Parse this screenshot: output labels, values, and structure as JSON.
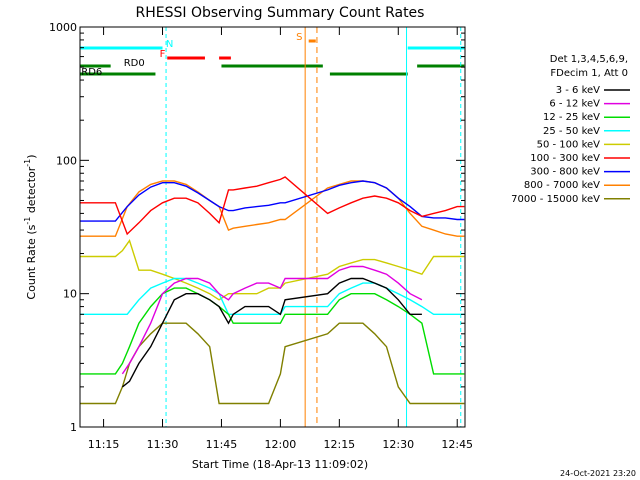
{
  "chart_data": {
    "type": "line",
    "title": "RHESSI Observing Summary Count Rates",
    "xlabel": "Start Time (18-Apr-13 11:09:02)",
    "ylabel": "Count Rate (s",
    "ylabel_sup": "-1",
    "ylabel_tail": " detector",
    "ylabel_sup2": "-1",
    "ylabel_end": ")",
    "timestamp": "24-Oct-2021 23:20",
    "yscale": "log",
    "ylim": [
      1,
      1000
    ],
    "xlim": [
      11.15,
      12.783
    ],
    "x_ticks": [
      {
        "v": 11.25,
        "label": "11:15"
      },
      {
        "v": 11.5,
        "label": "11:30"
      },
      {
        "v": 11.75,
        "label": "11:45"
      },
      {
        "v": 12.0,
        "label": "12:00"
      },
      {
        "v": 12.25,
        "label": "12:15"
      },
      {
        "v": 12.5,
        "label": "12:30"
      },
      {
        "v": 12.75,
        "label": "12:45"
      }
    ],
    "y_ticks": [
      {
        "v": 1,
        "label": "1"
      },
      {
        "v": 10,
        "label": "10"
      },
      {
        "v": 100,
        "label": "100"
      },
      {
        "v": 1000,
        "label": "1000"
      }
    ],
    "legend_header": [
      "Det 1,3,4,5,6,9,",
      "FDecim 1, Att 0"
    ],
    "series": [
      {
        "name": "3 - 6 keV",
        "color": "#000000",
        "x": [
          11.33,
          11.36,
          11.4,
          11.45,
          11.5,
          11.55,
          11.6,
          11.65,
          11.7,
          11.74,
          11.78,
          11.8,
          11.85,
          11.9,
          11.95,
          12.0,
          12.02,
          12.2,
          12.25,
          12.3,
          12.35,
          12.4,
          12.45,
          12.5,
          12.55,
          12.6
        ],
        "y": [
          2,
          2.2,
          3,
          4,
          6,
          9,
          10,
          10,
          9,
          8,
          6,
          7,
          8,
          8,
          8,
          7,
          9,
          10,
          12,
          13,
          13,
          12,
          11,
          9,
          7,
          7
        ]
      },
      {
        "name": "6 - 12 keV",
        "color": "#e000e0",
        "x": [
          11.33,
          11.36,
          11.4,
          11.45,
          11.5,
          11.55,
          11.6,
          11.65,
          11.7,
          11.74,
          11.78,
          11.8,
          11.85,
          11.9,
          11.95,
          12.0,
          12.02,
          12.2,
          12.25,
          12.3,
          12.35,
          12.4,
          12.45,
          12.5,
          12.55,
          12.6
        ],
        "y": [
          2.5,
          3,
          4,
          6,
          10,
          12,
          13,
          13,
          12,
          10,
          9,
          10,
          11,
          12,
          12,
          11,
          13,
          13,
          15,
          16,
          16,
          15,
          14,
          12,
          10,
          9
        ]
      },
      {
        "name": "12 - 25 keV",
        "color": "#00dd00",
        "x": [
          11.15,
          11.2,
          11.25,
          11.3,
          11.33,
          11.36,
          11.4,
          11.45,
          11.5,
          11.55,
          11.6,
          11.65,
          11.7,
          11.74,
          11.78,
          11.8,
          11.85,
          11.9,
          11.95,
          12.0,
          12.02,
          12.2,
          12.25,
          12.3,
          12.35,
          12.4,
          12.45,
          12.5,
          12.55,
          12.6,
          12.65,
          12.7,
          12.75,
          12.78
        ],
        "y": [
          2.5,
          2.5,
          2.5,
          2.5,
          3,
          4,
          6,
          8,
          10,
          11,
          11,
          10,
          9,
          8,
          7,
          6,
          6,
          6,
          6,
          6,
          7,
          7,
          9,
          10,
          10,
          10,
          9,
          8,
          7,
          6,
          2.5,
          2.5,
          2.5,
          2.5
        ]
      },
      {
        "name": "25 - 50 keV",
        "color": "#00ffff",
        "x": [
          11.15,
          11.2,
          11.25,
          11.3,
          11.35,
          11.4,
          11.45,
          11.5,
          11.55,
          11.6,
          11.65,
          11.7,
          11.74,
          11.78,
          11.8,
          11.85,
          11.9,
          11.95,
          12.0,
          12.02,
          12.2,
          12.25,
          12.3,
          12.35,
          12.4,
          12.45,
          12.5,
          12.55,
          12.6,
          12.65,
          12.7,
          12.75,
          12.78
        ],
        "y": [
          7,
          7,
          7,
          7,
          7,
          9,
          11,
          12,
          13,
          13,
          12,
          11,
          10,
          7,
          7,
          7,
          7,
          7,
          7,
          8,
          8,
          10,
          11,
          12,
          12,
          11,
          10,
          9,
          8,
          7,
          7,
          7,
          7
        ]
      },
      {
        "name": "50 - 100 keV",
        "color": "#cccc00",
        "x": [
          11.15,
          11.2,
          11.25,
          11.3,
          11.33,
          11.36,
          11.4,
          11.45,
          11.5,
          11.55,
          11.6,
          11.65,
          11.7,
          11.74,
          11.78,
          11.8,
          11.85,
          11.9,
          11.95,
          12.0,
          12.02,
          12.2,
          12.25,
          12.3,
          12.35,
          12.4,
          12.45,
          12.5,
          12.55,
          12.6,
          12.65,
          12.7,
          12.75,
          12.78
        ],
        "y": [
          19,
          19,
          19,
          19,
          21,
          25,
          15,
          15,
          14,
          13,
          12,
          11,
          10,
          9,
          10,
          10,
          10,
          10,
          11,
          11,
          12,
          14,
          16,
          17,
          18,
          18,
          17,
          16,
          15,
          14,
          19,
          19,
          19,
          19
        ]
      },
      {
        "name": "100 - 300 keV",
        "color": "#ff0000",
        "x": [
          11.15,
          11.2,
          11.25,
          11.3,
          11.35,
          11.4,
          11.45,
          11.5,
          11.55,
          11.6,
          11.65,
          11.7,
          11.74,
          11.78,
          11.8,
          11.85,
          11.9,
          11.95,
          12.0,
          12.02,
          12.2,
          12.25,
          12.3,
          12.35,
          12.4,
          12.45,
          12.5,
          12.55,
          12.6,
          12.65,
          12.7,
          12.75,
          12.78
        ],
        "y": [
          48,
          48,
          48,
          48,
          28,
          34,
          42,
          48,
          52,
          52,
          48,
          40,
          34,
          60,
          60,
          62,
          64,
          68,
          72,
          75,
          40,
          44,
          48,
          52,
          54,
          52,
          48,
          42,
          38,
          40,
          42,
          45,
          45
        ]
      },
      {
        "name": "300 - 800 keV",
        "color": "#0000ff",
        "x": [
          11.15,
          11.2,
          11.25,
          11.3,
          11.35,
          11.4,
          11.45,
          11.5,
          11.55,
          11.6,
          11.65,
          11.7,
          11.74,
          11.78,
          11.8,
          11.85,
          11.9,
          11.95,
          12.0,
          12.02,
          12.2,
          12.25,
          12.3,
          12.35,
          12.4,
          12.45,
          12.5,
          12.55,
          12.6,
          12.65,
          12.7,
          12.75,
          12.78
        ],
        "y": [
          35,
          35,
          35,
          35,
          45,
          55,
          63,
          68,
          68,
          64,
          57,
          50,
          45,
          42,
          42,
          44,
          45,
          46,
          48,
          48,
          60,
          65,
          68,
          70,
          68,
          62,
          52,
          45,
          38,
          37,
          37,
          36,
          36
        ]
      },
      {
        "name": "800 - 7000 keV",
        "color": "#ff8000",
        "x": [
          11.15,
          11.2,
          11.25,
          11.3,
          11.35,
          11.4,
          11.45,
          11.5,
          11.55,
          11.6,
          11.65,
          11.7,
          11.74,
          11.78,
          11.8,
          11.85,
          11.9,
          11.95,
          12.0,
          12.02,
          12.2,
          12.25,
          12.3,
          12.35,
          12.4,
          12.45,
          12.5,
          12.55,
          12.6,
          12.65,
          12.7,
          12.75,
          12.78
        ],
        "y": [
          27,
          27,
          27,
          27,
          45,
          58,
          66,
          70,
          70,
          66,
          58,
          50,
          45,
          30,
          31,
          32,
          33,
          34,
          36,
          36,
          62,
          66,
          70,
          70,
          68,
          62,
          52,
          40,
          32,
          30,
          28,
          27,
          27
        ]
      },
      {
        "name": "7000 - 15000 keV",
        "color": "#808000",
        "x": [
          11.15,
          11.2,
          11.25,
          11.3,
          11.33,
          11.36,
          11.4,
          11.45,
          11.5,
          11.55,
          11.6,
          11.65,
          11.7,
          11.74,
          11.78,
          11.8,
          11.85,
          11.9,
          11.95,
          12.0,
          12.02,
          12.2,
          12.25,
          12.3,
          12.35,
          12.4,
          12.45,
          12.5,
          12.55,
          12.6,
          12.65,
          12.7,
          12.75,
          12.78
        ],
        "y": [
          1.5,
          1.5,
          1.5,
          1.5,
          2,
          3,
          4,
          5,
          6,
          6,
          6,
          5,
          4,
          1.5,
          1.5,
          1.5,
          1.5,
          1.5,
          1.5,
          2.5,
          4,
          5,
          6,
          6,
          6,
          5,
          4,
          2,
          1.5,
          1.5,
          1.5,
          1.5,
          1.5,
          1.5
        ]
      }
    ],
    "annotations": {
      "flags": [
        {
          "label": "N",
          "color": "#00ffff"
        },
        {
          "label": "F",
          "color": "#ff0000"
        },
        {
          "label": "S",
          "color": "#ff8000"
        },
        {
          "label": "RD0",
          "color": "#008000"
        },
        {
          "label": "RD6",
          "color": "#008000"
        }
      ]
    }
  }
}
